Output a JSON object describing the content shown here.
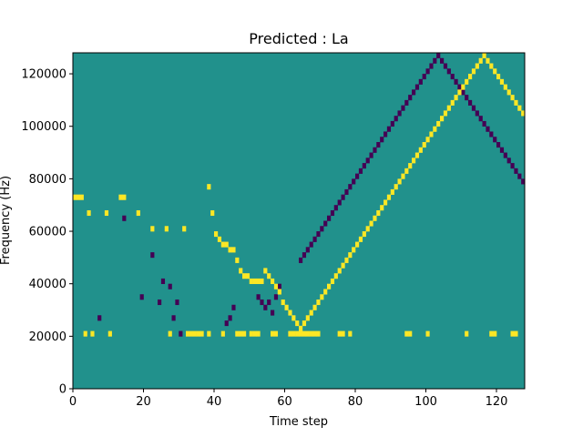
{
  "chart_data": {
    "type": "heatmap",
    "title": "Predicted : La",
    "xlabel": "Time step",
    "ylabel": "Frequency (Hz)",
    "xlim": [
      0,
      128
    ],
    "ylim": [
      0,
      128000
    ],
    "x_ticks": [
      0,
      20,
      40,
      60,
      80,
      100,
      120
    ],
    "y_ticks": [
      0,
      20000,
      40000,
      60000,
      80000,
      100000,
      120000
    ],
    "grid": false,
    "colormap": "viridis",
    "colors": {
      "background": "#21918c",
      "low": "#440154",
      "high": "#fde725"
    },
    "n_time_steps": 128,
    "n_freq_bins": 64,
    "freq_bin_hz": 2000,
    "background_value": 0,
    "high_cells": [
      [
        3,
        10
      ],
      [
        5,
        10
      ],
      [
        10,
        10
      ],
      [
        27,
        10
      ],
      [
        32,
        10
      ],
      [
        33,
        10
      ],
      [
        34,
        10
      ],
      [
        35,
        10
      ],
      [
        36,
        10
      ],
      [
        38,
        10
      ],
      [
        42,
        10
      ],
      [
        46,
        10
      ],
      [
        47,
        10
      ],
      [
        48,
        10
      ],
      [
        50,
        10
      ],
      [
        51,
        10
      ],
      [
        52,
        10
      ],
      [
        56,
        10
      ],
      [
        57,
        10
      ],
      [
        61,
        10
      ],
      [
        62,
        10
      ],
      [
        63,
        10
      ],
      [
        64,
        10
      ],
      [
        65,
        10
      ],
      [
        66,
        10
      ],
      [
        67,
        10
      ],
      [
        68,
        10
      ],
      [
        69,
        10
      ],
      [
        75,
        10
      ],
      [
        76,
        10
      ],
      [
        78,
        10
      ],
      [
        94,
        10
      ],
      [
        95,
        10
      ],
      [
        100,
        10
      ],
      [
        111,
        10
      ],
      [
        118,
        10
      ],
      [
        119,
        10
      ],
      [
        124,
        10
      ],
      [
        125,
        10
      ],
      [
        0,
        36
      ],
      [
        1,
        36
      ],
      [
        2,
        36
      ],
      [
        4,
        33
      ],
      [
        9,
        33
      ],
      [
        13,
        36
      ],
      [
        14,
        36
      ],
      [
        18,
        33
      ],
      [
        22,
        30
      ],
      [
        26,
        30
      ],
      [
        31,
        30
      ],
      [
        38,
        38
      ],
      [
        39,
        33
      ],
      [
        40,
        29
      ],
      [
        41,
        28
      ],
      [
        42,
        27
      ],
      [
        43,
        27
      ],
      [
        44,
        26
      ],
      [
        45,
        26
      ],
      [
        46,
        24
      ],
      [
        47,
        22
      ],
      [
        48,
        21
      ],
      [
        49,
        21
      ],
      [
        50,
        20
      ],
      [
        51,
        20
      ],
      [
        52,
        20
      ],
      [
        53,
        20
      ],
      [
        54,
        22
      ],
      [
        55,
        21
      ],
      [
        56,
        20
      ],
      [
        57,
        19
      ],
      [
        58,
        18
      ],
      [
        59,
        16
      ],
      [
        60,
        15
      ],
      [
        61,
        14
      ],
      [
        62,
        13
      ],
      [
        63,
        12
      ],
      [
        64,
        11
      ],
      [
        65,
        12
      ],
      [
        66,
        13
      ],
      [
        67,
        14
      ],
      [
        68,
        15
      ],
      [
        69,
        16
      ],
      [
        70,
        17
      ],
      [
        71,
        18
      ],
      [
        72,
        19
      ],
      [
        73,
        20
      ],
      [
        74,
        21
      ],
      [
        75,
        22
      ],
      [
        76,
        23
      ],
      [
        77,
        24
      ],
      [
        78,
        25
      ],
      [
        79,
        26
      ],
      [
        80,
        27
      ],
      [
        81,
        28
      ],
      [
        82,
        29
      ],
      [
        83,
        30
      ],
      [
        84,
        31
      ],
      [
        85,
        32
      ],
      [
        86,
        33
      ],
      [
        87,
        34
      ],
      [
        88,
        35
      ],
      [
        89,
        36
      ],
      [
        90,
        37
      ],
      [
        91,
        38
      ],
      [
        92,
        39
      ],
      [
        93,
        40
      ],
      [
        94,
        41
      ],
      [
        95,
        42
      ],
      [
        96,
        43
      ],
      [
        97,
        44
      ],
      [
        98,
        45
      ],
      [
        99,
        46
      ],
      [
        100,
        47
      ],
      [
        101,
        48
      ],
      [
        102,
        49
      ],
      [
        103,
        50
      ],
      [
        104,
        51
      ],
      [
        105,
        52
      ],
      [
        106,
        53
      ],
      [
        107,
        54
      ],
      [
        108,
        55
      ],
      [
        109,
        56
      ],
      [
        110,
        57
      ],
      [
        111,
        58
      ],
      [
        112,
        59
      ],
      [
        113,
        60
      ],
      [
        114,
        61
      ],
      [
        115,
        62
      ],
      [
        116,
        63
      ],
      [
        117,
        62
      ],
      [
        118,
        61
      ],
      [
        119,
        60
      ],
      [
        120,
        59
      ],
      [
        121,
        58
      ],
      [
        122,
        57
      ],
      [
        123,
        56
      ],
      [
        124,
        55
      ],
      [
        125,
        54
      ],
      [
        126,
        53
      ],
      [
        127,
        52
      ]
    ],
    "low_cells": [
      [
        7,
        13
      ],
      [
        14,
        32
      ],
      [
        19,
        17
      ],
      [
        22,
        25
      ],
      [
        24,
        16
      ],
      [
        25,
        20
      ],
      [
        27,
        19
      ],
      [
        28,
        13
      ],
      [
        29,
        16
      ],
      [
        30,
        10
      ],
      [
        43,
        12
      ],
      [
        44,
        13
      ],
      [
        45,
        15
      ],
      [
        52,
        17
      ],
      [
        53,
        16
      ],
      [
        54,
        15
      ],
      [
        55,
        16
      ],
      [
        56,
        14
      ],
      [
        57,
        17
      ],
      [
        58,
        19
      ],
      [
        64,
        24
      ],
      [
        65,
        25
      ],
      [
        66,
        26
      ],
      [
        67,
        27
      ],
      [
        68,
        28
      ],
      [
        69,
        29
      ],
      [
        70,
        30
      ],
      [
        71,
        31
      ],
      [
        72,
        32
      ],
      [
        73,
        33
      ],
      [
        74,
        34
      ],
      [
        75,
        35
      ],
      [
        76,
        36
      ],
      [
        77,
        37
      ],
      [
        78,
        38
      ],
      [
        79,
        39
      ],
      [
        80,
        40
      ],
      [
        81,
        41
      ],
      [
        82,
        42
      ],
      [
        83,
        43
      ],
      [
        84,
        44
      ],
      [
        85,
        45
      ],
      [
        86,
        46
      ],
      [
        87,
        47
      ],
      [
        88,
        48
      ],
      [
        89,
        49
      ],
      [
        90,
        50
      ],
      [
        91,
        51
      ],
      [
        92,
        52
      ],
      [
        93,
        53
      ],
      [
        94,
        54
      ],
      [
        95,
        55
      ],
      [
        96,
        56
      ],
      [
        97,
        57
      ],
      [
        98,
        58
      ],
      [
        99,
        59
      ],
      [
        100,
        60
      ],
      [
        101,
        61
      ],
      [
        102,
        62
      ],
      [
        103,
        63
      ],
      [
        104,
        62
      ],
      [
        105,
        61
      ],
      [
        106,
        60
      ],
      [
        107,
        59
      ],
      [
        108,
        58
      ],
      [
        109,
        57
      ],
      [
        110,
        56
      ],
      [
        111,
        55
      ],
      [
        112,
        54
      ],
      [
        113,
        53
      ],
      [
        114,
        52
      ],
      [
        115,
        51
      ],
      [
        116,
        50
      ],
      [
        117,
        49
      ],
      [
        118,
        48
      ],
      [
        119,
        47
      ],
      [
        120,
        46
      ],
      [
        121,
        45
      ],
      [
        122,
        44
      ],
      [
        123,
        43
      ],
      [
        124,
        42
      ],
      [
        125,
        41
      ],
      [
        126,
        40
      ],
      [
        127,
        39
      ]
    ]
  }
}
